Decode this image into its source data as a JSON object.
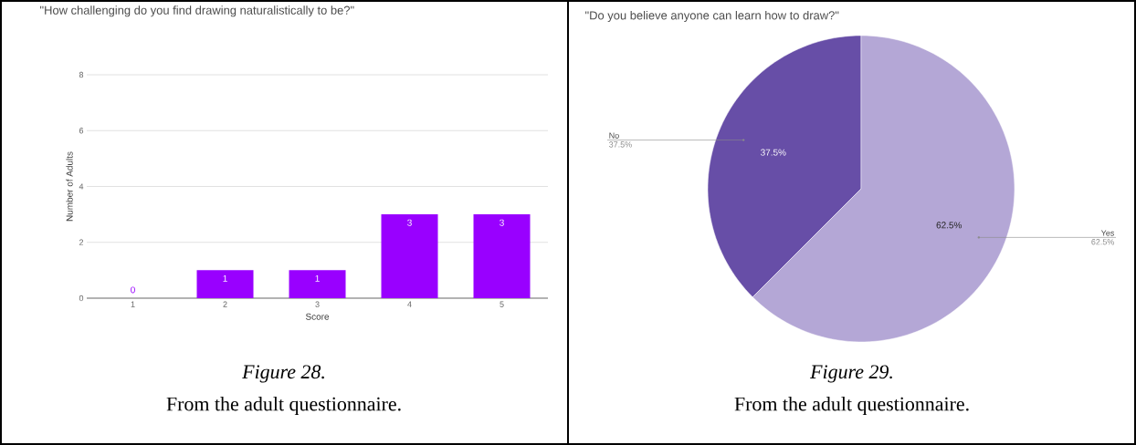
{
  "chart_data": [
    {
      "type": "bar",
      "title": "\"How challenging do you find drawing naturalistically to be?\"",
      "xlabel": "Score",
      "ylabel": "Number of Adults",
      "categories": [
        "1",
        "2",
        "3",
        "4",
        "5"
      ],
      "values": [
        0,
        1,
        1,
        3,
        3
      ],
      "color": "#9900ff",
      "ylim": [
        0,
        8
      ],
      "yticks": [
        0,
        2,
        4,
        6,
        8
      ],
      "grid": "y",
      "data_labels": true,
      "annotations": [
        "Figure 28.",
        "From the adult questionnaire."
      ]
    },
    {
      "type": "pie",
      "title": "\"Do you believe anyone can learn how to draw?\"",
      "categories": [
        "No",
        "Yes"
      ],
      "values": [
        37.5,
        62.5
      ],
      "colors": [
        "#674ea7",
        "#b4a7d6"
      ],
      "value_labels": [
        "37.5%",
        "62.5%"
      ],
      "annotations": [
        "Figure 29.",
        "From the adult questionnaire."
      ]
    }
  ]
}
